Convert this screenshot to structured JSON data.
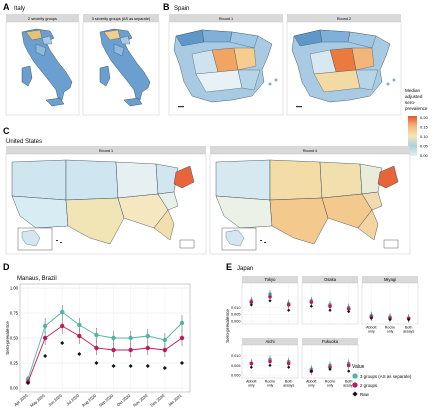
{
  "panels": {
    "A": {
      "letter": "A",
      "title": "Italy",
      "facets": [
        "2 severity groups",
        "3 severity groups (AS as separate)"
      ]
    },
    "B": {
      "letter": "B",
      "title": "Spain",
      "facets": [
        "Round 1",
        "Round 2"
      ]
    },
    "C": {
      "letter": "C",
      "title": "United States",
      "facets": [
        "Round 1",
        "Round 4"
      ]
    },
    "D": {
      "letter": "D",
      "title": "Manaus, Brazil"
    },
    "E": {
      "letter": "E",
      "title": "Japan"
    }
  },
  "colorbar": {
    "title_lines": [
      "Median",
      "adjusted",
      "sero-",
      "prevalence"
    ],
    "ticks": [
      "0.20",
      "0.15",
      "0.10",
      "0.05",
      "0.00"
    ],
    "colors": [
      "#e8f2f6",
      "#abd0e1",
      "#f4e6b5",
      "#f6b57d",
      "#e0572f"
    ]
  },
  "legend": {
    "title": "Value",
    "items": [
      {
        "label": "3 groups (AS as separate)",
        "color": "#52b5a4"
      },
      {
        "label": "2 groups",
        "color": "#c2185b"
      },
      {
        "label": "Raw",
        "color": "#111111"
      }
    ]
  },
  "chart_data": [
    {
      "type": "line",
      "panel": "D",
      "title": "Manaus, Brazil",
      "ylabel": "Sero-prevalence",
      "xlabel": "",
      "categories": [
        "Apr 2020",
        "May 2020",
        "Jun 2020",
        "Jul 2020",
        "Aug 2020",
        "Sep 2020",
        "Oct 2020",
        "Nov 2020",
        "Dec 2020",
        "Jan 2021"
      ],
      "yticks": [
        "0.00",
        "0.25",
        "0.50",
        "0.75",
        "1.00"
      ],
      "ylim": [
        0,
        1.0
      ],
      "grid": true,
      "series": [
        {
          "name": "3 groups (AS as separate)",
          "color": "#52b5a4",
          "points": [
            [
              0,
              0.09
            ],
            [
              1,
              0.62
            ],
            [
              2,
              0.76
            ],
            [
              3,
              0.63
            ],
            [
              4,
              0.53
            ],
            [
              5,
              0.5
            ],
            [
              6,
              0.5
            ],
            [
              7,
              0.52
            ],
            [
              8,
              0.48
            ],
            [
              9,
              0.65
            ]
          ],
          "err": [
            0.03,
            0.08,
            0.07,
            0.07,
            0.07,
            0.07,
            0.07,
            0.07,
            0.07,
            0.08
          ]
        },
        {
          "name": "2 groups",
          "color": "#c2185b",
          "points": [
            [
              0,
              0.06
            ],
            [
              1,
              0.5
            ],
            [
              2,
              0.62
            ],
            [
              3,
              0.52
            ],
            [
              4,
              0.4
            ],
            [
              5,
              0.38
            ],
            [
              6,
              0.38
            ],
            [
              7,
              0.4
            ],
            [
              8,
              0.38
            ],
            [
              9,
              0.5
            ]
          ],
          "err": [
            0.03,
            0.07,
            0.08,
            0.08,
            0.07,
            0.07,
            0.07,
            0.07,
            0.07,
            0.08
          ]
        },
        {
          "name": "Raw",
          "color": "#111111",
          "points": [
            [
              0,
              0.05
            ],
            [
              1,
              0.32
            ],
            [
              2,
              0.45
            ],
            [
              3,
              0.34
            ],
            [
              4,
              0.25
            ],
            [
              5,
              0.22
            ],
            [
              6,
              0.22
            ],
            [
              7,
              0.22
            ],
            [
              8,
              0.2
            ],
            [
              9,
              0.25
            ]
          ],
          "err": []
        }
      ]
    },
    {
      "type": "scatter",
      "panel": "E",
      "title": "Japan",
      "ylabel": "Sero-prevalence",
      "categories": [
        "Abbott only",
        "Roche only",
        "Both assays"
      ],
      "facets": [
        {
          "name": "Tokyo",
          "yticks": [
            "0.010",
            "0.005",
            "0.000"
          ],
          "ylim": [
            0,
            0.026
          ],
          "values": {
            "3 groups (AS as separate)": [
              0.015,
              0.02,
              0.013
            ],
            "2 groups": [
              0.014,
              0.018,
              0.012
            ],
            "Raw": [
              0.012,
              0.015,
              0.008
            ]
          }
        },
        {
          "name": "Osaka",
          "yticks": [],
          "ylim": [
            0,
            0.026
          ],
          "values": {
            "3 groups (AS as separate)": [
              0.015,
              0.012,
              0.01
            ],
            "2 groups": [
              0.014,
              0.011,
              0.009
            ],
            "Raw": [
              0.011,
              0.008,
              0.007
            ]
          }
        },
        {
          "name": "Miyagi",
          "yticks": [],
          "ylim": [
            0,
            0.026
          ],
          "values": {
            "3 groups (AS as separate)": [
              0.004,
              0.003,
              0.002
            ],
            "2 groups": [
              0.003,
              0.002,
              0.002
            ],
            "Raw": [
              0.002,
              0.001,
              0.001
            ]
          }
        },
        {
          "name": "Aichi",
          "yticks": [
            "0.010",
            "0.005",
            "0.000"
          ],
          "ylim": [
            0,
            0.014
          ],
          "values": {
            "3 groups (AS as separate)": [
              0.006,
              0.008,
              0.007
            ],
            "2 groups": [
              0.006,
              0.007,
              0.006
            ],
            "Raw": [
              0.004,
              0.005,
              0.004
            ]
          }
        },
        {
          "name": "Fukuoka",
          "yticks": [],
          "ylim": [
            0,
            0.014
          ],
          "values": {
            "3 groups (AS as separate)": [
              0.003,
              0.005,
              0.006
            ],
            "2 groups": [
              0.002,
              0.004,
              0.005
            ],
            "Raw": [
              0.002,
              0.003,
              0.002
            ]
          }
        }
      ]
    }
  ]
}
